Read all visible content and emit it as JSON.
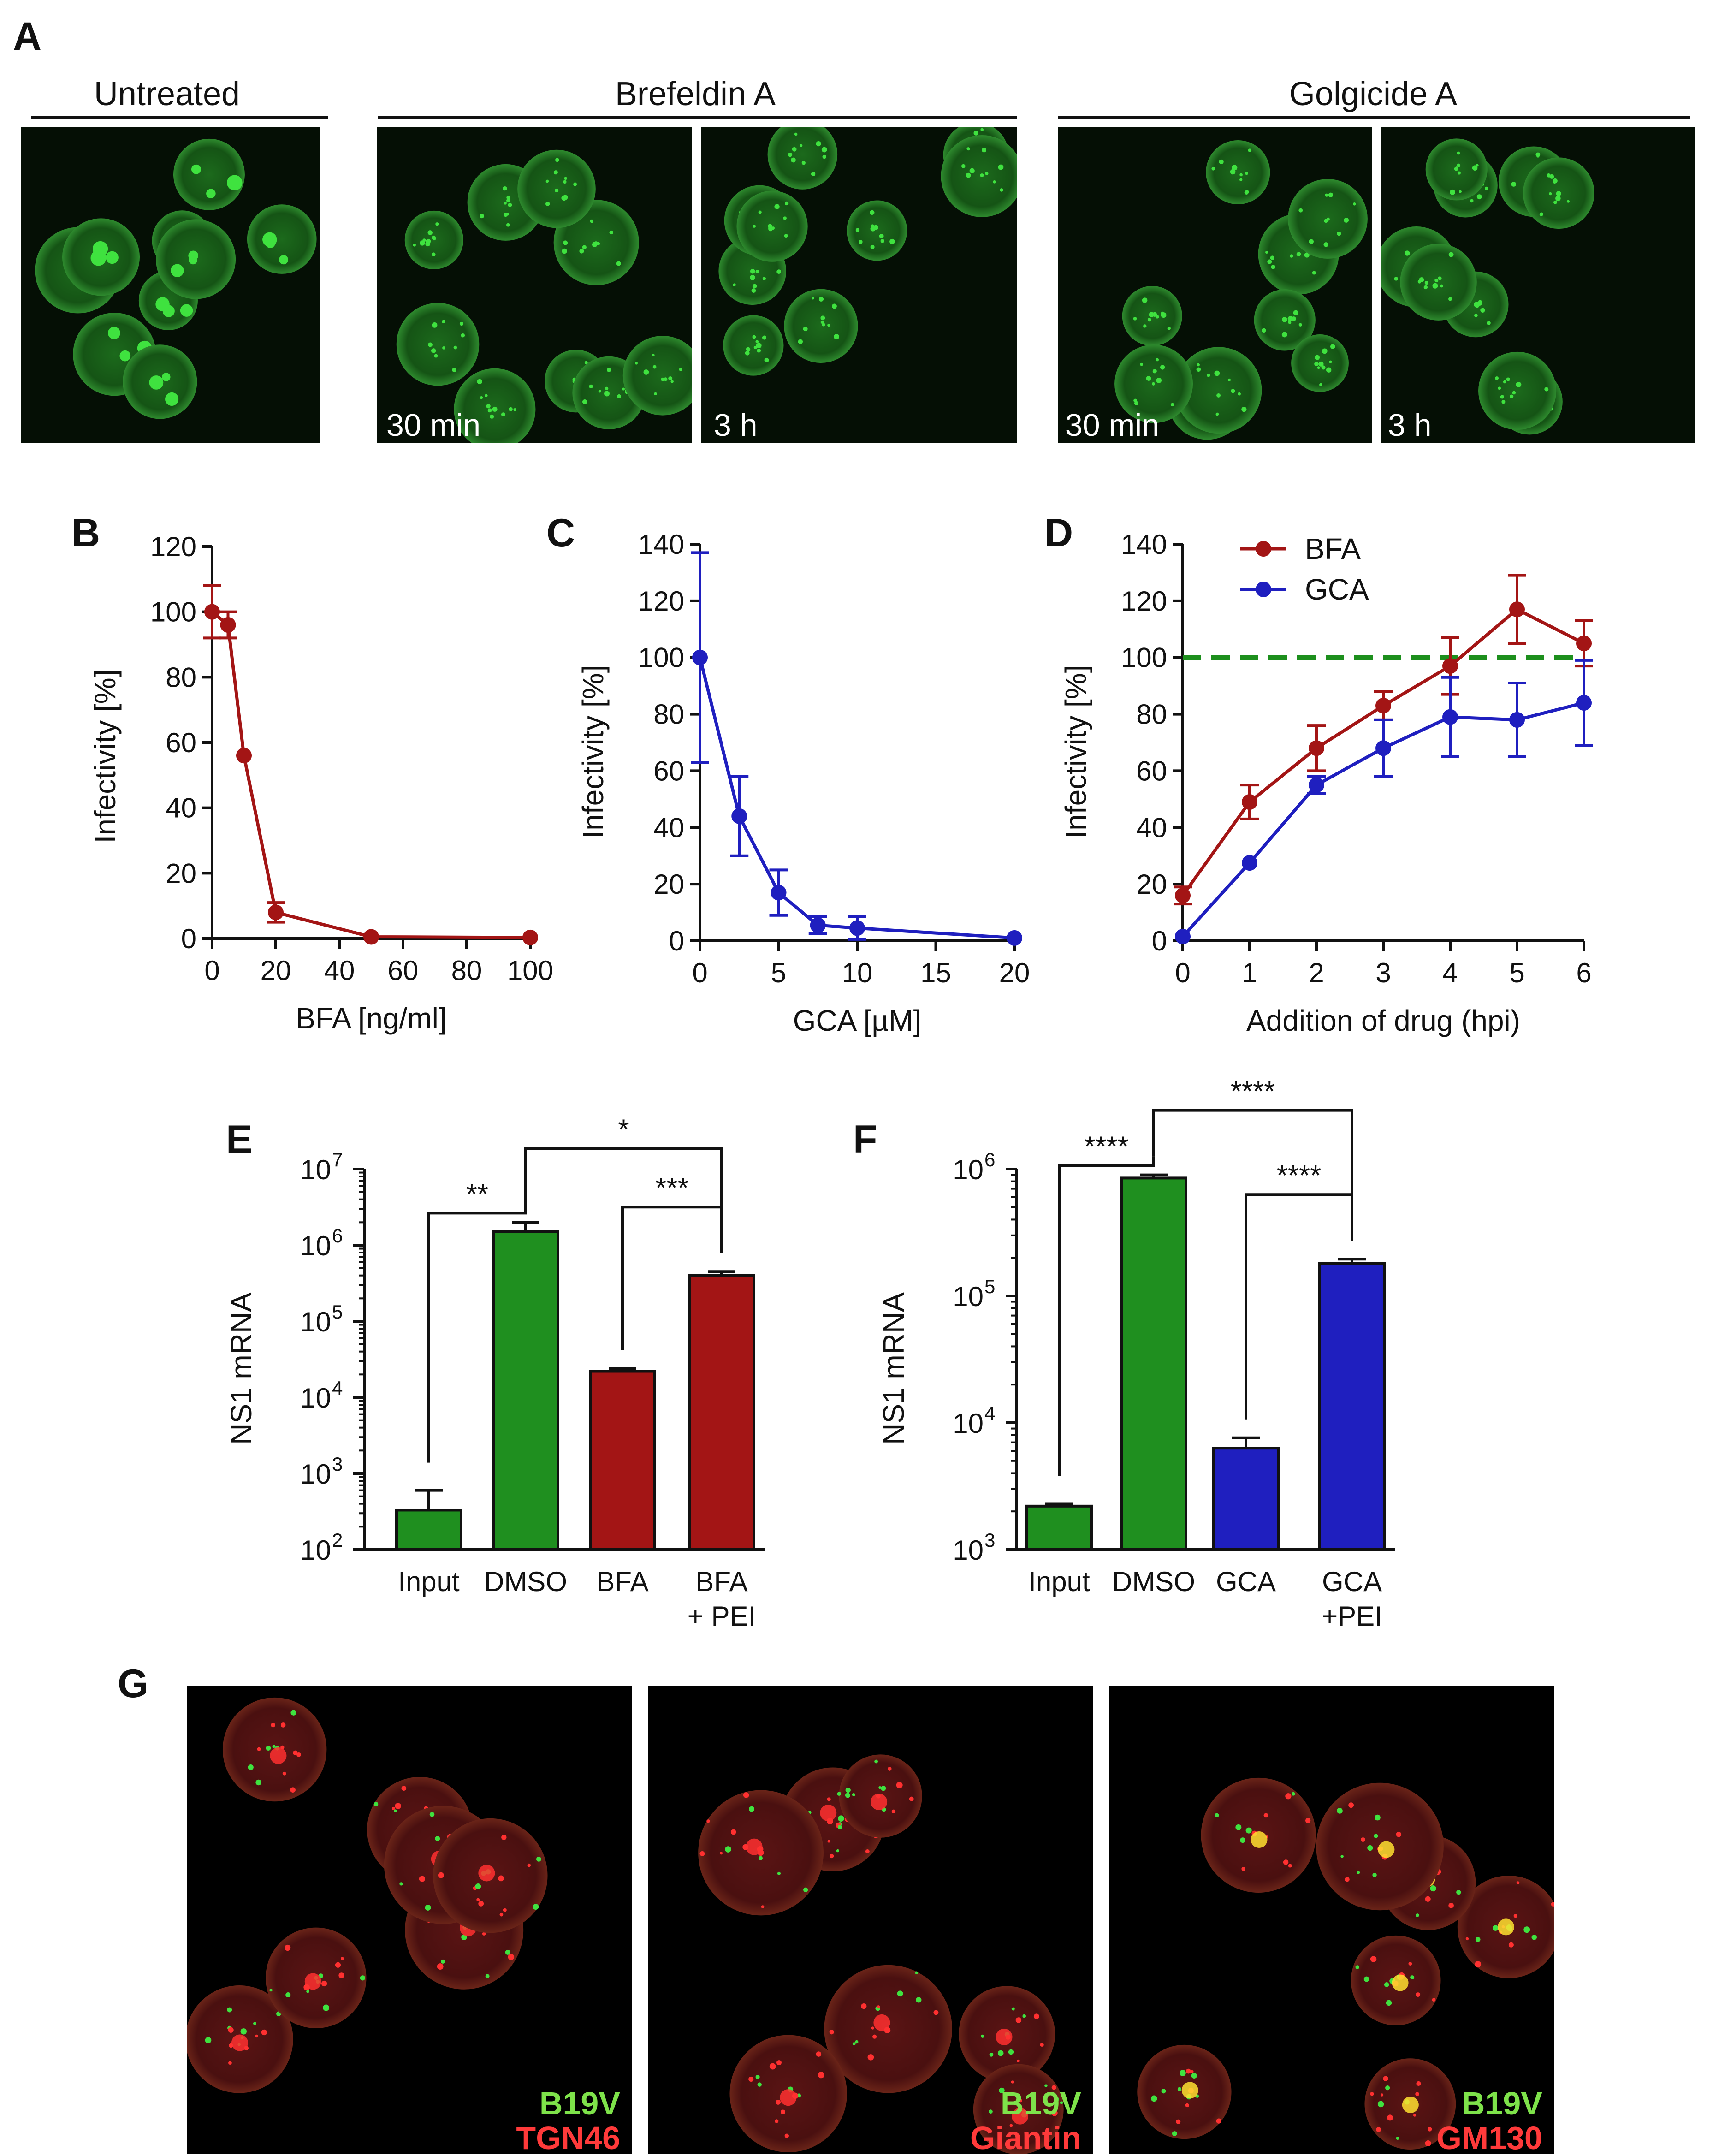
{
  "figure": {
    "panel_letters": [
      "A",
      "B",
      "C",
      "D",
      "E",
      "F",
      "G"
    ]
  },
  "panel_a": {
    "group_labels": [
      "Untreated",
      "Brefeldin A",
      "Golgicide A"
    ],
    "image_labels": [
      "",
      "30 min",
      "3 h",
      "30 min",
      "3 h"
    ]
  },
  "panel_g": {
    "green_labels": [
      "B19V",
      "B19V",
      "B19V"
    ],
    "red_labels": [
      "TGN46",
      "Giantin",
      "GM130"
    ]
  },
  "colors": {
    "bfa": "#a31515",
    "gca": "#1f1fbf",
    "dmso": "#1f8f1f",
    "reference_line": "#1d8f1d",
    "micrograph_green": "#3fe23f",
    "micrograph_red": "#ff3030"
  },
  "chart_data": [
    {
      "panel": "B",
      "type": "line",
      "xlabel": "BFA [ng/ml]",
      "ylabel": "Infectivity [%]",
      "xlim": [
        0,
        100
      ],
      "ylim": [
        0,
        120
      ],
      "xticks": [
        0,
        20,
        40,
        60,
        80,
        100
      ],
      "yticks": [
        0,
        20,
        40,
        60,
        80,
        100,
        120
      ],
      "series": [
        {
          "name": "BFA",
          "color": "#a31515",
          "x": [
            0,
            5,
            10,
            20,
            50,
            100
          ],
          "y": [
            100,
            96,
            56,
            8,
            0.5,
            0.3
          ],
          "err": [
            8,
            4,
            0,
            3,
            0,
            0
          ]
        }
      ]
    },
    {
      "panel": "C",
      "type": "line",
      "xlabel": "GCA [µM]",
      "ylabel": "Infectivity [%]",
      "xlim": [
        0,
        20
      ],
      "ylim": [
        0,
        140
      ],
      "xticks": [
        0,
        5,
        10,
        15,
        20
      ],
      "yticks": [
        0,
        20,
        40,
        60,
        80,
        100,
        120,
        140
      ],
      "series": [
        {
          "name": "GCA",
          "color": "#1f1fbf",
          "x": [
            0,
            2.5,
            5,
            7.5,
            10,
            20
          ],
          "y": [
            100,
            44,
            17,
            5.5,
            4.5,
            1
          ],
          "err": [
            37,
            14,
            8,
            3,
            4,
            0
          ]
        }
      ]
    },
    {
      "panel": "D",
      "type": "line",
      "xlabel": "Addition of drug (hpi)",
      "ylabel": "Infectivity [%]",
      "xlim": [
        0,
        6
      ],
      "ylim": [
        0,
        140
      ],
      "xticks": [
        0,
        1,
        2,
        3,
        4,
        5,
        6
      ],
      "yticks": [
        0,
        20,
        40,
        60,
        80,
        100,
        120,
        140
      ],
      "reference_line": 100,
      "legend": [
        "BFA",
        "GCA"
      ],
      "series": [
        {
          "name": "BFA",
          "color": "#a31515",
          "x": [
            0,
            1,
            2,
            3,
            4,
            5,
            6
          ],
          "y": [
            16,
            49,
            68,
            83,
            97,
            117,
            105
          ],
          "err": [
            3,
            6,
            8,
            5,
            10,
            12,
            8
          ]
        },
        {
          "name": "GCA",
          "color": "#1f1fbf",
          "x": [
            0,
            1,
            2,
            3,
            4,
            5,
            6
          ],
          "y": [
            1.5,
            27.5,
            55,
            68,
            79,
            78,
            84
          ],
          "err": [
            0,
            0,
            3,
            10,
            14,
            13,
            15
          ]
        }
      ]
    },
    {
      "panel": "E",
      "type": "bar",
      "scale": "log",
      "ylabel": "NS1 mRNA",
      "ylim_exp": [
        2,
        7
      ],
      "ytick_base": "10",
      "ytick_exponents": [
        "2",
        "3",
        "4",
        "5",
        "6",
        "7"
      ],
      "categories": [
        "Input",
        "DMSO",
        "BFA",
        "BFA"
      ],
      "categories_line2": [
        "",
        "",
        "",
        "+ PEI"
      ],
      "values": [
        330,
        1500000,
        22000,
        400000
      ],
      "err_high": [
        600,
        2000000,
        24000,
        450000
      ],
      "bar_colors": [
        "#1f8f1f",
        "#1f8f1f",
        "#a31515",
        "#a31515"
      ],
      "significance": [
        {
          "from": 0,
          "to": 1,
          "label": "**"
        },
        {
          "from": 1,
          "to": 3,
          "label": "*"
        },
        {
          "from": 2,
          "to": 3,
          "label": "***"
        }
      ]
    },
    {
      "panel": "F",
      "type": "bar",
      "scale": "log",
      "ylabel": "NS1 mRNA",
      "ylim_exp": [
        3,
        6
      ],
      "ytick_base": "10",
      "ytick_exponents": [
        "3",
        "4",
        "5",
        "6"
      ],
      "categories": [
        "Input",
        "DMSO",
        "GCA",
        "GCA"
      ],
      "categories_line2": [
        "",
        "",
        "",
        "+PEI"
      ],
      "values": [
        2200,
        850000,
        6300,
        180000
      ],
      "err_high": [
        2300,
        900000,
        7600,
        195000
      ],
      "bar_colors": [
        "#1f8f1f",
        "#1f8f1f",
        "#1f1fbf",
        "#1f1fbf"
      ],
      "significance": [
        {
          "from": 0,
          "to": 1,
          "label": "****"
        },
        {
          "from": 1,
          "to": 3,
          "label": "****"
        },
        {
          "from": 2,
          "to": 3,
          "label": "****"
        }
      ]
    }
  ]
}
